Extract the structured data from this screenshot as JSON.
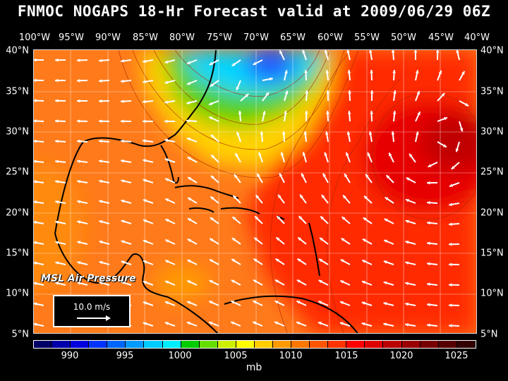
{
  "title": "FNMOC NOGAPS 18-Hr Forecast valid at 2009/06/29 06Z",
  "longitude_labels": [
    "100°W",
    "95°W",
    "90°W",
    "85°W",
    "80°W",
    "75°W",
    "70°W",
    "65°W",
    "60°W",
    "55°W",
    "50°W",
    "45°W",
    "40°W"
  ],
  "latitude_labels": [
    "40°N",
    "35°N",
    "30°N",
    "25°N",
    "20°N",
    "15°N",
    "10°N",
    "5°N"
  ],
  "field_label": "MSL Air Pressure",
  "reference_vector_label": "10.0 m/s",
  "colorbar": {
    "tick_labels": [
      "990",
      "995",
      "1000",
      "1005",
      "1010",
      "1015",
      "1020",
      "1025"
    ],
    "units": "mb",
    "colors": [
      "#000066",
      "#0000aa",
      "#0000dd",
      "#0033ff",
      "#0066ff",
      "#0099ff",
      "#00ccff",
      "#00eeff",
      "#00cc00",
      "#66dd00",
      "#ccee00",
      "#ffff00",
      "#ffcc00",
      "#ff9900",
      "#ff7700",
      "#ff5500",
      "#ff3300",
      "#ff0000",
      "#dd0000",
      "#bb0000",
      "#990000",
      "#770000",
      "#550000",
      "#330000"
    ]
  }
}
